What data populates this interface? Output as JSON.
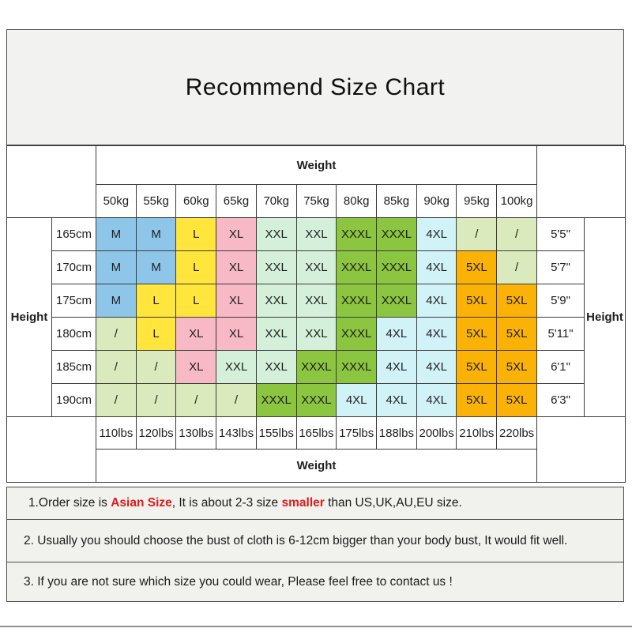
{
  "title": "Recommend Size Chart",
  "colors": {
    "M": "#8dc6e9",
    "L": "#ffe53c",
    "XL": "#f8b9c6",
    "XXL": "#d4f0da",
    "XXXL": "#8cc540",
    "4XL": "#d1f2f7",
    "5XL": "#fbb207",
    "/": "#dbeabc",
    "note_red": "#dd1c1c",
    "box_background": "#f2f2f0",
    "grid_border": "#3b3b3b"
  },
  "table": {
    "weight_label": "Weight",
    "height_label": "Height",
    "weights_kg": [
      "50kg",
      "55kg",
      "60kg",
      "65kg",
      "70kg",
      "75kg",
      "80kg",
      "85kg",
      "90kg",
      "95kg",
      "100kg"
    ],
    "weights_lbs": [
      "110lbs",
      "120lbs",
      "130lbs",
      "143lbs",
      "155lbs",
      "165lbs",
      "175lbs",
      "188lbs",
      "200lbs",
      "210lbs",
      "220lbs"
    ],
    "rows": [
      {
        "height_cm": "165cm",
        "height_ft": "5'5\"",
        "sizes": [
          "M",
          "M",
          "L",
          "XL",
          "XXL",
          "XXL",
          "XXXL",
          "XXXL",
          "4XL",
          "/",
          "/"
        ]
      },
      {
        "height_cm": "170cm",
        "height_ft": "5'7\"",
        "sizes": [
          "M",
          "M",
          "L",
          "XL",
          "XXL",
          "XXL",
          "XXXL",
          "XXXL",
          "4XL",
          "5XL",
          "/"
        ]
      },
      {
        "height_cm": "175cm",
        "height_ft": "5'9\"",
        "sizes": [
          "M",
          "L",
          "L",
          "XL",
          "XXL",
          "XXL",
          "XXXL",
          "XXXL",
          "4XL",
          "5XL",
          "5XL"
        ]
      },
      {
        "height_cm": "180cm",
        "height_ft": "5'11\"",
        "sizes": [
          "/",
          "L",
          "XL",
          "XL",
          "XXL",
          "XXL",
          "XXXL",
          "4XL",
          "4XL",
          "5XL",
          "5XL"
        ]
      },
      {
        "height_cm": "185cm",
        "height_ft": "6'1\"",
        "sizes": [
          "/",
          "/",
          "XL",
          "XXL",
          "XXL",
          "XXXL",
          "XXXL",
          "4XL",
          "4XL",
          "5XL",
          "5XL"
        ]
      },
      {
        "height_cm": "190cm",
        "height_ft": "6'3\"",
        "sizes": [
          "/",
          "/",
          "/",
          "/",
          "XXXL",
          "XXXL",
          "4XL",
          "4XL",
          "4XL",
          "5XL",
          "5XL"
        ]
      }
    ]
  },
  "notes": {
    "note1_segments": [
      {
        "text": "1.Order size is ",
        "red": false
      },
      {
        "text": "Asian Size",
        "red": true
      },
      {
        "text": ", It is about 2-3 size ",
        "red": false
      },
      {
        "text": "smaller",
        "red": true
      },
      {
        "text": " than US,UK,AU,EU size.",
        "red": false
      }
    ],
    "note2": "2. Usually you should choose the bust of cloth is 6-12cm bigger than your body bust, It would fit well.",
    "note3": "3. If you are not sure which size you could wear, Please feel free to contact us !"
  }
}
